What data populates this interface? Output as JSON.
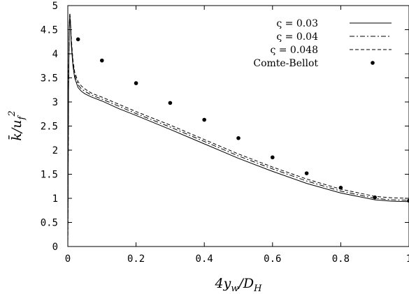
{
  "chart_data": {
    "type": "line",
    "xlabel": "4y_w/D_H",
    "ylabel": "k̄/u_f²",
    "xlim": [
      0,
      1
    ],
    "ylim": [
      0,
      5
    ],
    "x_ticks": [
      "0",
      "0.2",
      "0.4",
      "0.6",
      "0.8",
      "1"
    ],
    "y_ticks": [
      "0",
      "0.5",
      "1",
      "1.5",
      "2",
      "2.5",
      "3",
      "3.5",
      "4",
      "4.5",
      "5"
    ],
    "grid": false,
    "legend_position": "top-right",
    "series": [
      {
        "name": "ς = 0.03",
        "style": "solid",
        "x": [
          0,
          0.002,
          0.004,
          0.006,
          0.008,
          0.01,
          0.015,
          0.02,
          0.03,
          0.04,
          0.05,
          0.07,
          0.1,
          0.15,
          0.2,
          0.3,
          0.4,
          0.5,
          0.6,
          0.7,
          0.8,
          0.9,
          0.95,
          1.0
        ],
        "y": [
          0.0,
          3.2,
          4.5,
          4.8,
          4.55,
          4.2,
          3.75,
          3.5,
          3.3,
          3.22,
          3.17,
          3.1,
          3.02,
          2.86,
          2.72,
          2.43,
          2.13,
          1.83,
          1.56,
          1.31,
          1.11,
          0.97,
          0.94,
          0.93
        ]
      },
      {
        "name": "ς = 0.04",
        "style": "dashdot",
        "x": [
          0,
          0.002,
          0.004,
          0.006,
          0.008,
          0.01,
          0.015,
          0.02,
          0.03,
          0.04,
          0.05,
          0.07,
          0.1,
          0.15,
          0.2,
          0.3,
          0.4,
          0.5,
          0.6,
          0.7,
          0.8,
          0.9,
          0.95,
          1.0
        ],
        "y": [
          0.0,
          3.25,
          4.55,
          4.82,
          4.6,
          4.27,
          3.82,
          3.56,
          3.36,
          3.27,
          3.22,
          3.14,
          3.06,
          2.91,
          2.76,
          2.48,
          2.18,
          1.88,
          1.61,
          1.36,
          1.15,
          1.0,
          0.97,
          0.96
        ]
      },
      {
        "name": "ς = 0.048",
        "style": "dashed",
        "x": [
          0,
          0.002,
          0.004,
          0.006,
          0.008,
          0.01,
          0.015,
          0.02,
          0.03,
          0.04,
          0.05,
          0.07,
          0.1,
          0.15,
          0.2,
          0.3,
          0.4,
          0.5,
          0.6,
          0.7,
          0.8,
          0.9,
          0.95,
          1.0
        ],
        "y": [
          0.0,
          3.3,
          4.6,
          4.85,
          4.65,
          4.33,
          3.88,
          3.62,
          3.42,
          3.33,
          3.27,
          3.18,
          3.1,
          2.95,
          2.8,
          2.52,
          2.22,
          1.92,
          1.65,
          1.4,
          1.19,
          1.04,
          1.01,
          1.0
        ]
      },
      {
        "name": "Comte-Bellot",
        "style": "markers",
        "x": [
          0.03,
          0.1,
          0.2,
          0.3,
          0.4,
          0.5,
          0.6,
          0.7,
          0.8,
          0.9,
          1.0
        ],
        "y": [
          4.3,
          3.86,
          3.39,
          2.98,
          2.63,
          2.25,
          1.85,
          1.52,
          1.22,
          1.02,
          0.95
        ]
      }
    ]
  }
}
